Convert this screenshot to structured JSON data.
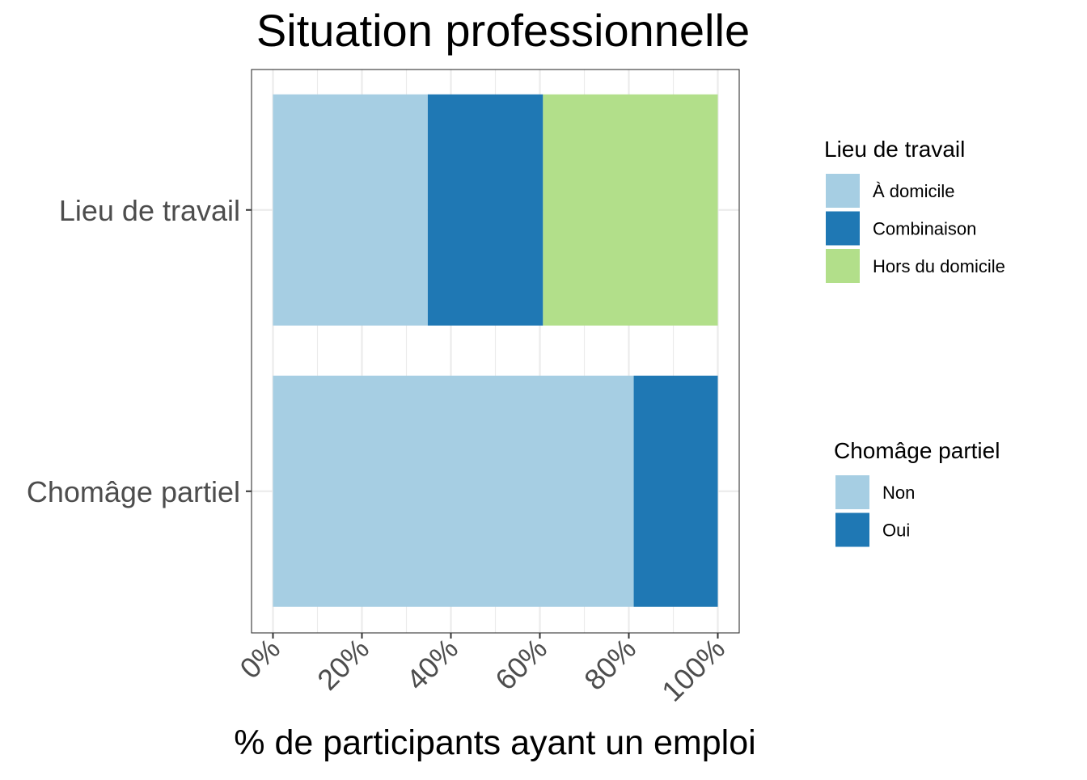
{
  "chart_data": {
    "type": "bar",
    "orientation": "horizontal",
    "stacked": true,
    "title": "Situation professionnelle",
    "xlabel": "% de participants ayant un emploi",
    "ylabel": "",
    "xlim": [
      0,
      100
    ],
    "x_ticks": [
      0,
      20,
      40,
      60,
      80,
      100
    ],
    "x_tick_labels": [
      "0%",
      "20%",
      "40%",
      "60%",
      "80%",
      "100%"
    ],
    "grid": true,
    "categories": [
      "Lieu de travail",
      "Chomâge partiel"
    ],
    "bars": [
      {
        "category": "Lieu de travail",
        "segments": [
          {
            "name": "À domicile",
            "value": 34.8,
            "color": "#a6cee3"
          },
          {
            "name": "Combinaison",
            "value": 25.9,
            "color": "#1f78b4"
          },
          {
            "name": "Hors du domicile",
            "value": 39.3,
            "color": "#b2df8a"
          }
        ]
      },
      {
        "category": "Chomâge partiel",
        "segments": [
          {
            "name": "Non",
            "value": 81.1,
            "color": "#a6cee3"
          },
          {
            "name": "Oui",
            "value": 18.9,
            "color": "#1f78b4"
          }
        ]
      }
    ],
    "legends": [
      {
        "title": "Lieu de travail",
        "placement": "right-top",
        "items": [
          {
            "label": "À domicile",
            "color": "#a6cee3"
          },
          {
            "label": "Combinaison",
            "color": "#1f78b4"
          },
          {
            "label": "Hors du domicile",
            "color": "#b2df8a"
          }
        ]
      },
      {
        "title": "Chomâge partiel",
        "placement": "right-bottom",
        "items": [
          {
            "label": "Non",
            "color": "#a6cee3"
          },
          {
            "label": "Oui",
            "color": "#1f78b4"
          }
        ]
      }
    ]
  }
}
